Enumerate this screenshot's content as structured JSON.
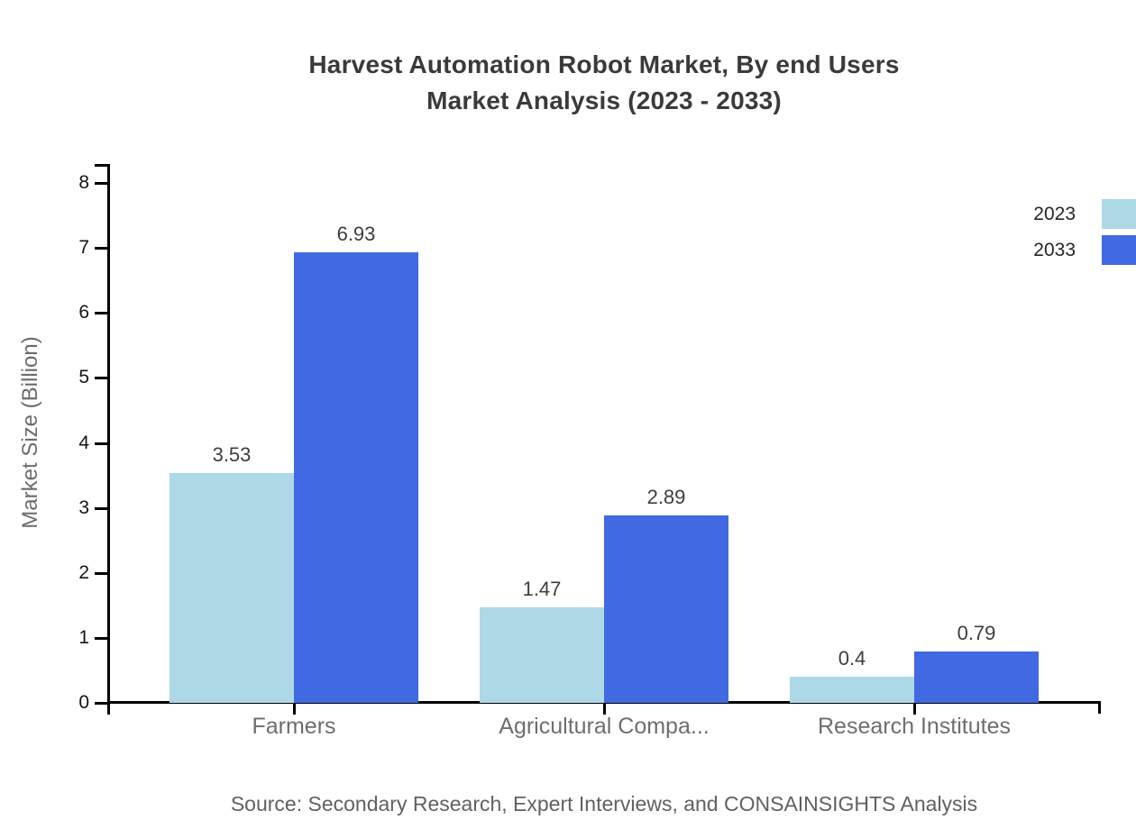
{
  "title": {
    "line1": "Harvest Automation Robot Market, By end Users",
    "line2": "Market Analysis (2023 - 2033)"
  },
  "chart_data": {
    "type": "bar",
    "title": "Harvest Automation Robot Market, By end Users Market Analysis (2023 - 2033)",
    "categories": [
      "Farmers",
      "Agricultural Compa...",
      "Research Institutes"
    ],
    "series": [
      {
        "name": "2023",
        "color": "#add8e6",
        "values": [
          3.53,
          1.47,
          0.4
        ]
      },
      {
        "name": "2033",
        "color": "#4169e1",
        "values": [
          6.93,
          2.89,
          0.79
        ]
      }
    ],
    "xlabel": "",
    "ylabel": "Market Size (Billion)",
    "ylim": [
      0,
      8
    ],
    "yticks": [
      0,
      1,
      2,
      3,
      4,
      5,
      6,
      7,
      8
    ],
    "grid": false,
    "legend_position": "top-right",
    "bar_value_labels": true
  },
  "source": {
    "text": "Source: Secondary Research, Expert Interviews, and CONSAINSIGHTS Analysis"
  },
  "colors": {
    "series_2023": "#add8e6",
    "series_2033": "#4169e1",
    "axis": "#000000",
    "title_text": "#3a3a3a",
    "tick_label": "#141414",
    "category_label": "#6e6e6e",
    "value_label": "#3d3d3d",
    "axis_title": "#6b6b6b",
    "source_text": "#616161",
    "background": "#ffffff"
  }
}
